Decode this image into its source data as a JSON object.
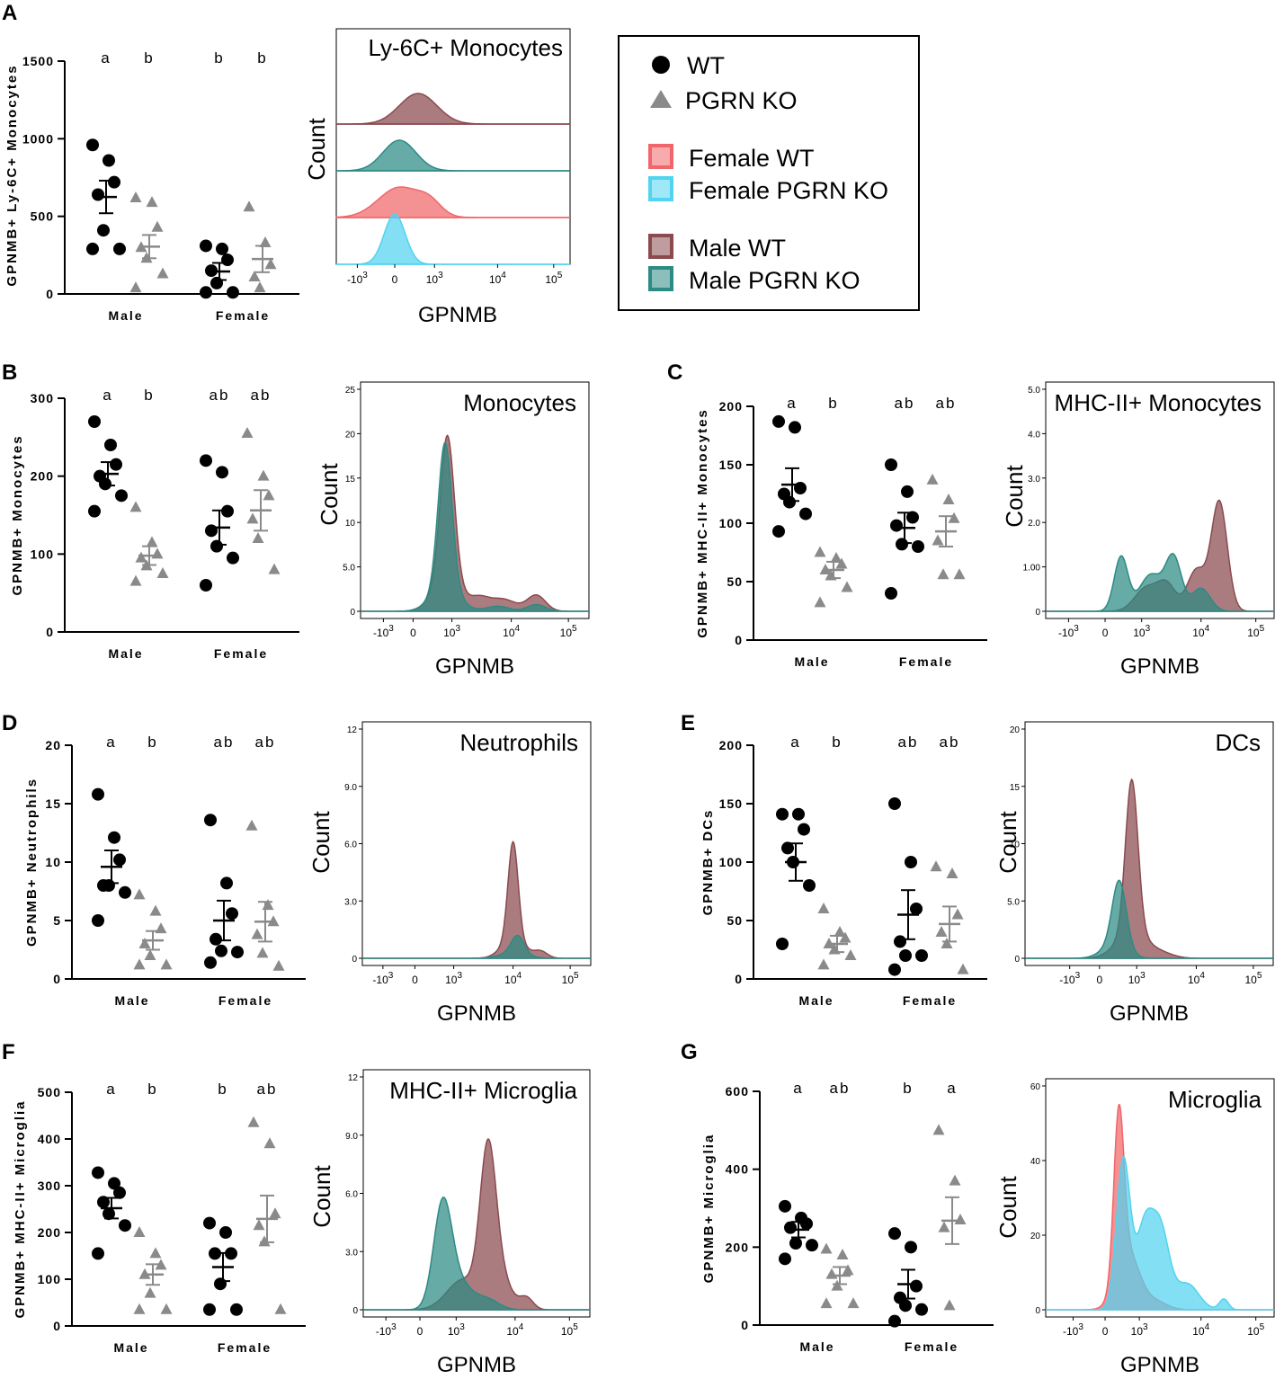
{
  "colors": {
    "wt": "#000000",
    "ko": "#8a8a8a",
    "female_wt": "#f0666a",
    "female_ko": "#52d3f0",
    "male_wt": "#8a4a4e",
    "male_ko": "#2d8a84"
  },
  "legend": {
    "wt": "WT",
    "ko": "PGRN KO",
    "female_wt": "Female WT",
    "female_ko": "Female PGRN KO",
    "male_wt": "Male WT",
    "male_ko": "Male PGRN KO"
  },
  "chart_data": [
    {
      "panel": "A",
      "type": "scatter",
      "ylabel": "GPNMB+ Ly-6C+ Monocytes",
      "ylim": [
        0,
        1500
      ],
      "yticks": [
        "0",
        "500",
        "1000",
        "1500"
      ],
      "categories": [
        "Male",
        "Female"
      ],
      "letters": [
        "a",
        "b",
        "b",
        "b"
      ],
      "groups": [
        {
          "sex": "Male",
          "genotype": "WT",
          "mean": 625,
          "sem": 105,
          "points": [
            960,
            860,
            720,
            640,
            410,
            290,
            290
          ]
        },
        {
          "sex": "Male",
          "genotype": "PGRN KO",
          "mean": 305,
          "sem": 75,
          "points": [
            620,
            590,
            430,
            300,
            230,
            130,
            40
          ]
        },
        {
          "sex": "Female",
          "genotype": "WT",
          "mean": 145,
          "sem": 55,
          "points": [
            310,
            290,
            220,
            150,
            70,
            10,
            10
          ]
        },
        {
          "sex": "Female",
          "genotype": "PGRN KO",
          "mean": 225,
          "sem": 85,
          "points": [
            560,
            330,
            190,
            110,
            40
          ]
        }
      ]
    },
    {
      "panel": "A-histogram",
      "type": "area",
      "title": "Ly-6C+ Monocytes",
      "xlabel": "GPNMB",
      "ylabel": "Count",
      "xticks": [
        "-10^3",
        "0",
        "10^3",
        "10^4",
        "10^5"
      ],
      "series": [
        {
          "name": "Male WT",
          "peak_at": 0.35,
          "height": 1
        },
        {
          "name": "Male PGRN KO",
          "peak_at": 0.27,
          "height": 1
        },
        {
          "name": "Female WT",
          "peak_at": 0.27,
          "height": 1
        },
        {
          "name": "Female PGRN KO",
          "peak_at": 0.25,
          "height": 1
        }
      ]
    },
    {
      "panel": "B",
      "type": "scatter",
      "ylabel": "GPNMB+ Monocytes",
      "ylim": [
        0,
        300
      ],
      "yticks": [
        "0",
        "100",
        "200",
        "300"
      ],
      "categories": [
        "Male",
        "Female"
      ],
      "letters": [
        "a",
        "b",
        "ab",
        "ab"
      ],
      "groups": [
        {
          "sex": "Male",
          "genotype": "WT",
          "mean": 203,
          "sem": 15,
          "points": [
            270,
            240,
            215,
            200,
            190,
            175,
            155
          ]
        },
        {
          "sex": "Male",
          "genotype": "PGRN KO",
          "mean": 98,
          "sem": 12,
          "points": [
            160,
            115,
            100,
            95,
            85,
            75,
            65
          ]
        },
        {
          "sex": "Female",
          "genotype": "WT",
          "mean": 134,
          "sem": 22,
          "points": [
            220,
            205,
            155,
            130,
            110,
            95,
            60
          ]
        },
        {
          "sex": "Female",
          "genotype": "PGRN KO",
          "mean": 156,
          "sem": 26,
          "points": [
            255,
            200,
            175,
            145,
            120,
            80
          ]
        }
      ]
    },
    {
      "panel": "B-histogram",
      "type": "area",
      "title": "Monocytes",
      "xlabel": "GPNMB",
      "ylabel": "Count",
      "ylim": [
        0,
        25
      ],
      "yticks": [
        "0",
        "5.0",
        "10",
        "15",
        "20",
        "25"
      ],
      "xticks": [
        "-10^3",
        "0",
        "10^3",
        "10^4",
        "10^5"
      ],
      "series": [
        {
          "name": "Male WT",
          "peak_value": 19.8
        },
        {
          "name": "Male PGRN KO",
          "peak_value": 19.0
        }
      ]
    },
    {
      "panel": "C",
      "type": "scatter",
      "ylabel": "GPNMB+ MHC-II+ Monocytes",
      "ylim": [
        0,
        200
      ],
      "yticks": [
        "0",
        "50",
        "100",
        "150",
        "200"
      ],
      "categories": [
        "Male",
        "Female"
      ],
      "letters": [
        "a",
        "b",
        "ab",
        "ab"
      ],
      "groups": [
        {
          "sex": "Male",
          "genotype": "WT",
          "mean": 133,
          "sem": 14,
          "points": [
            187,
            182,
            130,
            125,
            118,
            108,
            93
          ]
        },
        {
          "sex": "Male",
          "genotype": "PGRN KO",
          "mean": 60,
          "sem": 7,
          "points": [
            75,
            70,
            65,
            60,
            55,
            45,
            32
          ]
        },
        {
          "sex": "Female",
          "genotype": "WT",
          "mean": 96,
          "sem": 13,
          "points": [
            150,
            127,
            105,
            98,
            82,
            80,
            40
          ]
        },
        {
          "sex": "Female",
          "genotype": "PGRN KO",
          "mean": 93,
          "sem": 13,
          "points": [
            137,
            120,
            104,
            85,
            56,
            56
          ]
        }
      ]
    },
    {
      "panel": "C-histogram",
      "type": "area",
      "title": "MHC-II+ Monocytes",
      "xlabel": "GPNMB",
      "ylabel": "Count",
      "ylim": [
        0,
        5.0
      ],
      "yticks": [
        "0",
        "1.00",
        "2.0",
        "3.0",
        "4.0",
        "5.0"
      ],
      "xticks": [
        "-10^3",
        "0",
        "10^3",
        "10^4",
        "10^5"
      ],
      "series": [
        {
          "name": "Male WT",
          "peak_value": 2.5
        },
        {
          "name": "Male PGRN KO",
          "peak_value": 1.3
        }
      ]
    },
    {
      "panel": "D",
      "type": "scatter",
      "ylabel": "GPNMB+ Neutrophils",
      "ylim": [
        0,
        20
      ],
      "yticks": [
        "0",
        "5",
        "10",
        "15",
        "20"
      ],
      "categories": [
        "Male",
        "Female"
      ],
      "letters": [
        "a",
        "b",
        "ab",
        "ab"
      ],
      "groups": [
        {
          "sex": "Male",
          "genotype": "WT",
          "mean": 9.6,
          "sem": 1.4,
          "points": [
            15.8,
            12.1,
            10.2,
            8.0,
            8.0,
            7.4,
            5.0
          ]
        },
        {
          "sex": "Male",
          "genotype": "PGRN KO",
          "mean": 3.3,
          "sem": 0.8,
          "points": [
            7.2,
            5.8,
            4.3,
            3.0,
            2.0,
            1.2,
            1.2
          ]
        },
        {
          "sex": "Female",
          "genotype": "WT",
          "mean": 5.0,
          "sem": 1.7,
          "points": [
            13.6,
            8.2,
            5.6,
            3.4,
            2.4,
            2.3,
            1.4
          ]
        },
        {
          "sex": "Female",
          "genotype": "PGRN KO",
          "mean": 4.9,
          "sem": 1.7,
          "points": [
            13.1,
            6.3,
            4.9,
            3.8,
            2.2,
            1.1
          ]
        }
      ]
    },
    {
      "panel": "D-histogram",
      "type": "area",
      "title": "Neutrophils",
      "xlabel": "GPNMB",
      "ylabel": "Count",
      "ylim": [
        0,
        12
      ],
      "yticks": [
        "0",
        "3.0",
        "6.0",
        "9.0",
        "12"
      ],
      "xticks": [
        "-10^3",
        "0",
        "10^3",
        "10^4",
        "10^5"
      ],
      "series": [
        {
          "name": "Male WT",
          "peak_value": 6.1
        },
        {
          "name": "Male PGRN KO",
          "peak_value": 1.2
        }
      ]
    },
    {
      "panel": "E",
      "type": "scatter",
      "ylabel": "GPNMB+ DCs",
      "ylim": [
        0,
        200
      ],
      "yticks": [
        "0",
        "50",
        "100",
        "150",
        "200"
      ],
      "categories": [
        "Male",
        "Female"
      ],
      "letters": [
        "a",
        "b",
        "ab",
        "ab"
      ],
      "groups": [
        {
          "sex": "Male",
          "genotype": "WT",
          "mean": 100,
          "sem": 16,
          "points": [
            141,
            141,
            128,
            112,
            100,
            80,
            30
          ]
        },
        {
          "sex": "Male",
          "genotype": "PGRN KO",
          "mean": 30,
          "sem": 7,
          "points": [
            60,
            40,
            35,
            30,
            25,
            20,
            12
          ]
        },
        {
          "sex": "Female",
          "genotype": "WT",
          "mean": 55,
          "sem": 21,
          "points": [
            150,
            100,
            60,
            32,
            20,
            20,
            8
          ]
        },
        {
          "sex": "Female",
          "genotype": "PGRN KO",
          "mean": 47,
          "sem": 15,
          "points": [
            96,
            90,
            55,
            40,
            30,
            8
          ]
        }
      ]
    },
    {
      "panel": "E-histogram",
      "type": "area",
      "title": "DCs",
      "xlabel": "GPNMB",
      "ylabel": "Count",
      "ylim": [
        0,
        20
      ],
      "yticks": [
        "0",
        "5.0",
        "10",
        "15",
        "20"
      ],
      "xticks": [
        "-10^3",
        "0",
        "10^3",
        "10^4",
        "10^5"
      ],
      "series": [
        {
          "name": "Male WT",
          "peak_value": 15.6
        },
        {
          "name": "Male PGRN KO",
          "peak_value": 6.8
        }
      ]
    },
    {
      "panel": "F",
      "type": "scatter",
      "ylabel": "GPNMB+ MHC-II+ Microglia",
      "ylim": [
        0,
        500
      ],
      "yticks": [
        "0",
        "100",
        "200",
        "300",
        "400",
        "500"
      ],
      "categories": [
        "Male",
        "Female"
      ],
      "letters": [
        "a",
        "b",
        "b",
        "ab"
      ],
      "groups": [
        {
          "sex": "Male",
          "genotype": "WT",
          "mean": 252,
          "sem": 22,
          "points": [
            328,
            305,
            285,
            265,
            240,
            215,
            155
          ]
        },
        {
          "sex": "Male",
          "genotype": "PGRN KO",
          "mean": 110,
          "sem": 22,
          "points": [
            200,
            155,
            130,
            110,
            70,
            35,
            35
          ]
        },
        {
          "sex": "Female",
          "genotype": "WT",
          "mean": 126,
          "sem": 30,
          "points": [
            220,
            200,
            155,
            155,
            90,
            35,
            35
          ]
        },
        {
          "sex": "Female",
          "genotype": "PGRN KO",
          "mean": 229,
          "sem": 50,
          "points": [
            435,
            390,
            240,
            215,
            180,
            35
          ]
        }
      ]
    },
    {
      "panel": "F-histogram",
      "type": "area",
      "title": "MHC-II+ Microglia",
      "xlabel": "GPNMB",
      "ylabel": "Count",
      "ylim": [
        0,
        12
      ],
      "yticks": [
        "0",
        "3.0",
        "6.0",
        "9.0",
        "12"
      ],
      "xticks": [
        "-10^3",
        "0",
        "10^3",
        "10^4",
        "10^5"
      ],
      "series": [
        {
          "name": "Male WT",
          "peak_value": 8.8
        },
        {
          "name": "Male PGRN KO",
          "peak_value": 5.8
        }
      ]
    },
    {
      "panel": "G",
      "type": "scatter",
      "ylabel": "GPNMB+ Microglia",
      "ylim": [
        0,
        600
      ],
      "yticks": [
        "0",
        "200",
        "400",
        "600"
      ],
      "categories": [
        "Male",
        "Female"
      ],
      "letters": [
        "a",
        "ab",
        "b",
        "a"
      ],
      "groups": [
        {
          "sex": "Male",
          "genotype": "WT",
          "mean": 245,
          "sem": 20,
          "points": [
            305,
            275,
            260,
            250,
            210,
            205,
            170
          ]
        },
        {
          "sex": "Male",
          "genotype": "PGRN KO",
          "mean": 127,
          "sem": 22,
          "points": [
            195,
            180,
            140,
            130,
            100,
            55,
            55
          ]
        },
        {
          "sex": "Female",
          "genotype": "WT",
          "mean": 105,
          "sem": 37,
          "points": [
            235,
            200,
            100,
            70,
            50,
            40,
            10
          ]
        },
        {
          "sex": "Female",
          "genotype": "PGRN KO",
          "mean": 268,
          "sem": 60,
          "points": [
            500,
            370,
            270,
            250,
            50
          ]
        }
      ]
    },
    {
      "panel": "G-histogram",
      "type": "area",
      "title": "Microglia",
      "xlabel": "GPNMB",
      "ylabel": "Count",
      "ylim": [
        0,
        60
      ],
      "yticks": [
        "0",
        "20",
        "40",
        "60"
      ],
      "xticks": [
        "-10^3",
        "0",
        "10^3",
        "10^4",
        "10^5"
      ],
      "series": [
        {
          "name": "Female WT",
          "peak_value": 55
        },
        {
          "name": "Female PGRN KO",
          "peak_value": 41
        }
      ]
    }
  ]
}
